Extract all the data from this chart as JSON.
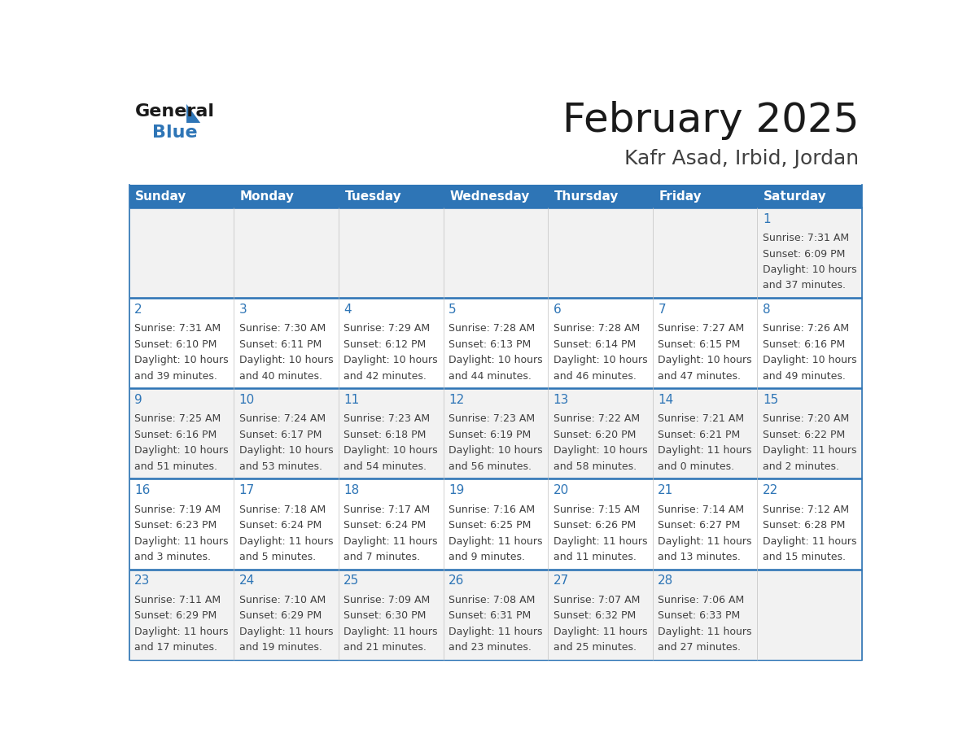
{
  "title": "February 2025",
  "subtitle": "Kafr Asad, Irbid, Jordan",
  "header_bg": "#2E75B6",
  "header_text_color": "#FFFFFF",
  "day_number_color": "#2E75B6",
  "info_text_color": "#404040",
  "border_color": "#2E75B6",
  "row_bg_odd": "#FFFFFF",
  "row_bg_even": "#F2F2F2",
  "days_of_week": [
    "Sunday",
    "Monday",
    "Tuesday",
    "Wednesday",
    "Thursday",
    "Friday",
    "Saturday"
  ],
  "weeks": [
    [
      null,
      null,
      null,
      null,
      null,
      null,
      {
        "day": "1",
        "sunrise": "7:31 AM",
        "sunset": "6:09 PM",
        "daylight": "10 hours",
        "daylight2": "and 37 minutes."
      }
    ],
    [
      {
        "day": "2",
        "sunrise": "7:31 AM",
        "sunset": "6:10 PM",
        "daylight": "10 hours",
        "daylight2": "and 39 minutes."
      },
      {
        "day": "3",
        "sunrise": "7:30 AM",
        "sunset": "6:11 PM",
        "daylight": "10 hours",
        "daylight2": "and 40 minutes."
      },
      {
        "day": "4",
        "sunrise": "7:29 AM",
        "sunset": "6:12 PM",
        "daylight": "10 hours",
        "daylight2": "and 42 minutes."
      },
      {
        "day": "5",
        "sunrise": "7:28 AM",
        "sunset": "6:13 PM",
        "daylight": "10 hours",
        "daylight2": "and 44 minutes."
      },
      {
        "day": "6",
        "sunrise": "7:28 AM",
        "sunset": "6:14 PM",
        "daylight": "10 hours",
        "daylight2": "and 46 minutes."
      },
      {
        "day": "7",
        "sunrise": "7:27 AM",
        "sunset": "6:15 PM",
        "daylight": "10 hours",
        "daylight2": "and 47 minutes."
      },
      {
        "day": "8",
        "sunrise": "7:26 AM",
        "sunset": "6:16 PM",
        "daylight": "10 hours",
        "daylight2": "and 49 minutes."
      }
    ],
    [
      {
        "day": "9",
        "sunrise": "7:25 AM",
        "sunset": "6:16 PM",
        "daylight": "10 hours",
        "daylight2": "and 51 minutes."
      },
      {
        "day": "10",
        "sunrise": "7:24 AM",
        "sunset": "6:17 PM",
        "daylight": "10 hours",
        "daylight2": "and 53 minutes."
      },
      {
        "day": "11",
        "sunrise": "7:23 AM",
        "sunset": "6:18 PM",
        "daylight": "10 hours",
        "daylight2": "and 54 minutes."
      },
      {
        "day": "12",
        "sunrise": "7:23 AM",
        "sunset": "6:19 PM",
        "daylight": "10 hours",
        "daylight2": "and 56 minutes."
      },
      {
        "day": "13",
        "sunrise": "7:22 AM",
        "sunset": "6:20 PM",
        "daylight": "10 hours",
        "daylight2": "and 58 minutes."
      },
      {
        "day": "14",
        "sunrise": "7:21 AM",
        "sunset": "6:21 PM",
        "daylight": "11 hours",
        "daylight2": "and 0 minutes."
      },
      {
        "day": "15",
        "sunrise": "7:20 AM",
        "sunset": "6:22 PM",
        "daylight": "11 hours",
        "daylight2": "and 2 minutes."
      }
    ],
    [
      {
        "day": "16",
        "sunrise": "7:19 AM",
        "sunset": "6:23 PM",
        "daylight": "11 hours",
        "daylight2": "and 3 minutes."
      },
      {
        "day": "17",
        "sunrise": "7:18 AM",
        "sunset": "6:24 PM",
        "daylight": "11 hours",
        "daylight2": "and 5 minutes."
      },
      {
        "day": "18",
        "sunrise": "7:17 AM",
        "sunset": "6:24 PM",
        "daylight": "11 hours",
        "daylight2": "and 7 minutes."
      },
      {
        "day": "19",
        "sunrise": "7:16 AM",
        "sunset": "6:25 PM",
        "daylight": "11 hours",
        "daylight2": "and 9 minutes."
      },
      {
        "day": "20",
        "sunrise": "7:15 AM",
        "sunset": "6:26 PM",
        "daylight": "11 hours",
        "daylight2": "and 11 minutes."
      },
      {
        "day": "21",
        "sunrise": "7:14 AM",
        "sunset": "6:27 PM",
        "daylight": "11 hours",
        "daylight2": "and 13 minutes."
      },
      {
        "day": "22",
        "sunrise": "7:12 AM",
        "sunset": "6:28 PM",
        "daylight": "11 hours",
        "daylight2": "and 15 minutes."
      }
    ],
    [
      {
        "day": "23",
        "sunrise": "7:11 AM",
        "sunset": "6:29 PM",
        "daylight": "11 hours",
        "daylight2": "and 17 minutes."
      },
      {
        "day": "24",
        "sunrise": "7:10 AM",
        "sunset": "6:29 PM",
        "daylight": "11 hours",
        "daylight2": "and 19 minutes."
      },
      {
        "day": "25",
        "sunrise": "7:09 AM",
        "sunset": "6:30 PM",
        "daylight": "11 hours",
        "daylight2": "and 21 minutes."
      },
      {
        "day": "26",
        "sunrise": "7:08 AM",
        "sunset": "6:31 PM",
        "daylight": "11 hours",
        "daylight2": "and 23 minutes."
      },
      {
        "day": "27",
        "sunrise": "7:07 AM",
        "sunset": "6:32 PM",
        "daylight": "11 hours",
        "daylight2": "and 25 minutes."
      },
      {
        "day": "28",
        "sunrise": "7:06 AM",
        "sunset": "6:33 PM",
        "daylight": "11 hours",
        "daylight2": "and 27 minutes."
      },
      null
    ]
  ],
  "logo_color_general": "#1a1a1a",
  "logo_color_blue": "#2E75B6",
  "logo_triangle_color": "#2E75B6",
  "title_fontsize": 36,
  "subtitle_fontsize": 18,
  "header_fontsize": 11,
  "day_num_fontsize": 11,
  "cell_fontsize": 9
}
